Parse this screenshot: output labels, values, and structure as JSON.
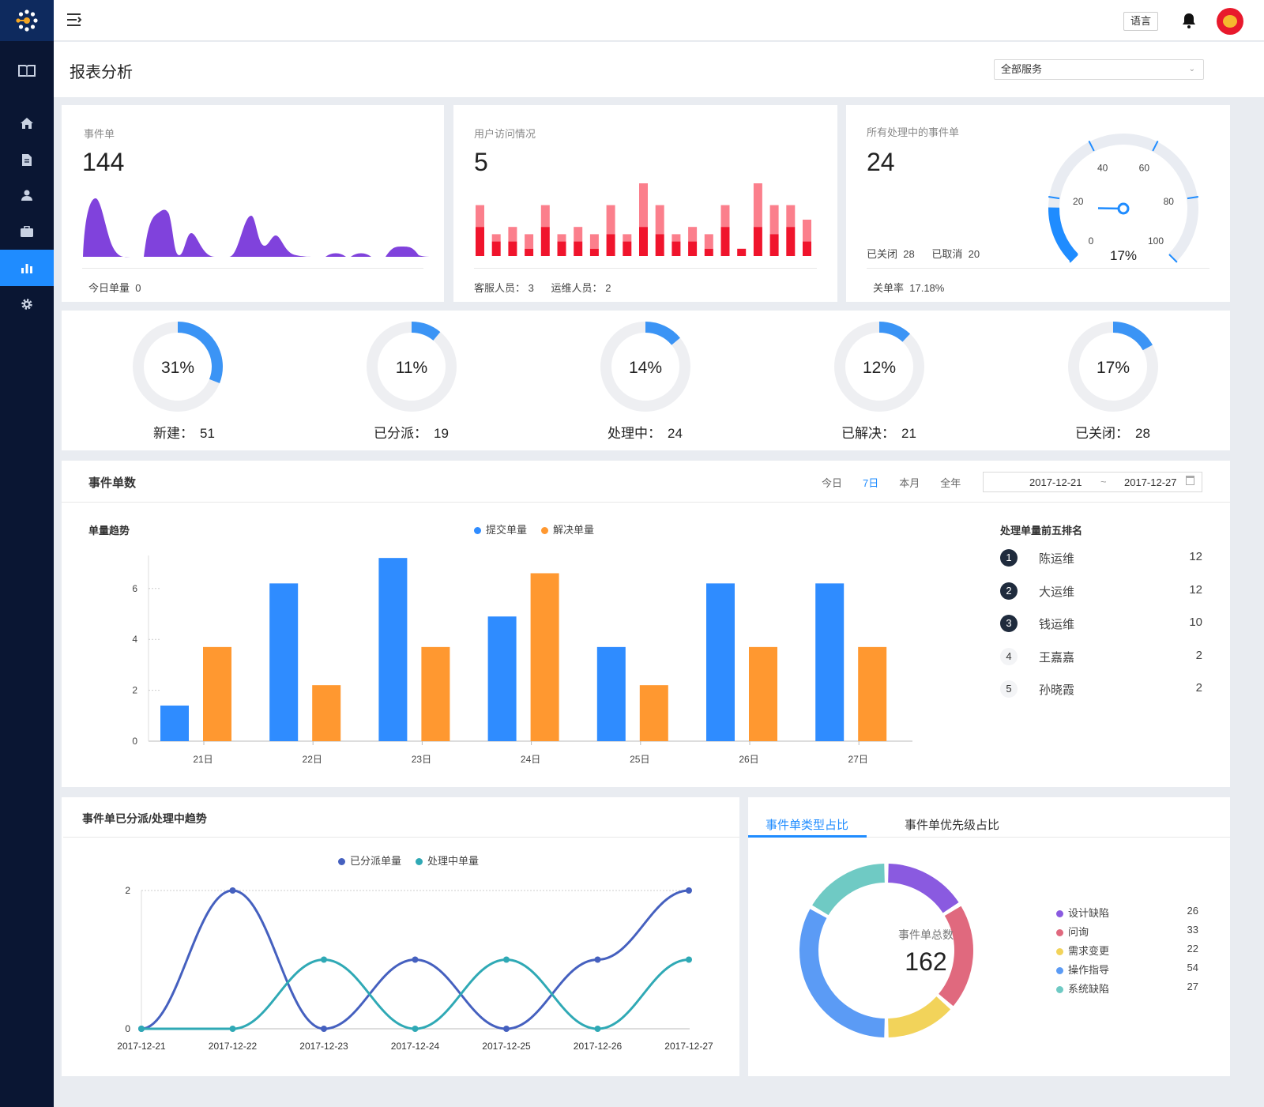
{
  "header": {
    "language_label": "语言",
    "page_title": "报表分析",
    "service_select": "全部服务"
  },
  "sidebar": {
    "items": [
      "manual",
      "home",
      "document",
      "user",
      "briefcase",
      "report",
      "settings"
    ],
    "active": "report"
  },
  "cards": {
    "tickets": {
      "title": "事件单",
      "value": "144",
      "today_label": "今日单量",
      "today_value": "0"
    },
    "visits": {
      "title": "用户访问情况",
      "value": "5",
      "cs_label": "客服人员：",
      "cs_value": "3",
      "ops_label": "运维人员：",
      "ops_value": "2",
      "bars_dark": [
        4,
        2,
        2,
        1,
        4,
        2,
        2,
        1,
        3,
        2,
        4,
        3,
        2,
        2,
        1,
        4,
        1,
        4,
        3,
        4,
        2
      ],
      "bars_total": [
        7,
        3,
        4,
        3,
        7,
        3,
        4,
        3,
        7,
        3,
        10,
        7,
        3,
        4,
        3,
        7,
        1,
        10,
        7,
        7,
        5
      ]
    },
    "processing": {
      "title": "所有处理中的事件单",
      "value": "24",
      "closed_label": "已关闭",
      "closed_value": "28",
      "cancelled_label": "已取消",
      "cancelled_value": "20",
      "rate_label": "关单率",
      "rate_value": "17.18%",
      "gauge_percent": 17,
      "gauge_label": "17%",
      "gauge_ticks": [
        "0",
        "20",
        "40",
        "60",
        "80",
        "100"
      ]
    }
  },
  "status_rings": [
    {
      "percent": 31,
      "label": "31%",
      "name": "新建：",
      "value": "51"
    },
    {
      "percent": 11,
      "label": "11%",
      "name": "已分派：",
      "value": "19"
    },
    {
      "percent": 14,
      "label": "14%",
      "name": "处理中：",
      "value": "24"
    },
    {
      "percent": 12,
      "label": "12%",
      "name": "已解决：",
      "value": "21"
    },
    {
      "percent": 17,
      "label": "17%",
      "name": "已关闭：",
      "value": "28"
    }
  ],
  "ticket_count": {
    "title": "事件单数",
    "ranges": [
      "今日",
      "7日",
      "本月",
      "全年"
    ],
    "active_range": "7日",
    "date_from": "2017-12-21",
    "date_sep": "~",
    "date_to": "2017-12-27",
    "ranking_title": "处理单量前五排名",
    "ranking": [
      {
        "rank": "1",
        "name": "陈运维",
        "value": "12"
      },
      {
        "rank": "2",
        "name": "大运维",
        "value": "12"
      },
      {
        "rank": "3",
        "name": "钱运维",
        "value": "10"
      },
      {
        "rank": "4",
        "name": "王嘉嘉",
        "value": "2"
      },
      {
        "rank": "5",
        "name": "孙晓霞",
        "value": "2"
      }
    ]
  },
  "tabs": {
    "items": [
      "事件单类型占比",
      "事件单优先级占比"
    ],
    "active": 0
  },
  "chart_data": [
    {
      "type": "bar",
      "title": "单量趋势",
      "categories": [
        "21日",
        "22日",
        "23日",
        "24日",
        "25日",
        "26日",
        "27日"
      ],
      "series": [
        {
          "name": "提交单量",
          "color": "#2f8cff",
          "values": [
            1.4,
            6.2,
            7.2,
            4.9,
            3.7,
            6.2,
            6.2
          ]
        },
        {
          "name": "解决单量",
          "color": "#ff9830",
          "values": [
            3.7,
            2.2,
            3.7,
            6.6,
            2.2,
            3.7,
            3.7
          ]
        }
      ],
      "yticks": [
        "0",
        "2",
        "4",
        "6"
      ],
      "ylim": [
        0,
        7.3
      ]
    },
    {
      "type": "line",
      "title": "事件单已分派/处理中趋势",
      "x": [
        "2017-12-21",
        "2017-12-22",
        "2017-12-23",
        "2017-12-24",
        "2017-12-25",
        "2017-12-26",
        "2017-12-27"
      ],
      "series": [
        {
          "name": "已分派单量",
          "color": "#4560bf",
          "values": [
            0,
            2,
            0,
            1,
            0,
            1,
            2
          ]
        },
        {
          "name": "处理中单量",
          "color": "#2fa9b5",
          "values": [
            0,
            0,
            1,
            0,
            1,
            0,
            1
          ]
        }
      ],
      "yticks": [
        "0",
        "2"
      ],
      "ylim": [
        0,
        2
      ]
    },
    {
      "type": "pie",
      "center_label": "事件单总数",
      "total": "162",
      "slices": [
        {
          "name": "设计缺陷",
          "value": 26,
          "label": "26",
          "color": "#8a5ae0"
        },
        {
          "name": "问询",
          "value": 33,
          "label": "33",
          "color": "#e0697e"
        },
        {
          "name": "需求变更",
          "value": 22,
          "label": "22",
          "color": "#f2d35a"
        },
        {
          "name": "操作指导",
          "value": 54,
          "label": "54",
          "color": "#5b9bf5"
        },
        {
          "name": "系统缺陷",
          "value": 27,
          "label": "27",
          "color": "#6fcac4"
        }
      ]
    }
  ]
}
